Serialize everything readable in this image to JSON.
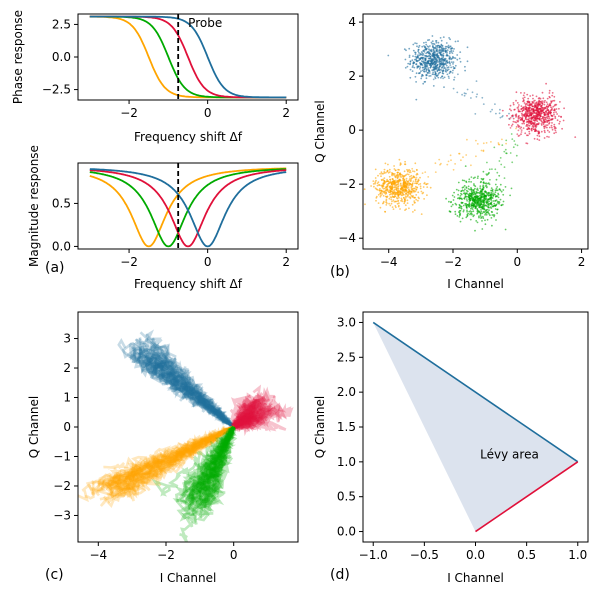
{
  "chart_data": [
    {
      "id": "a_phase",
      "type": "line",
      "ylabel": "Phase response",
      "xlabel": "Frequency shift Δf",
      "xlim": [
        -3.3,
        2.3
      ],
      "ylim": [
        -3.3,
        3.3
      ],
      "xticks": [
        -2,
        0,
        2
      ],
      "yticks": [
        -2.5,
        0.0,
        2.5
      ],
      "ytick_labels": [
        "−2.5",
        "0.0",
        "2.5"
      ],
      "xtick_labels": [
        "−2",
        "0",
        "2"
      ],
      "probe_x": -0.75,
      "annotation": "Probe",
      "series": [
        {
          "name": "orange",
          "color": "#FFA500",
          "center": -1.5
        },
        {
          "name": "green",
          "color": "#00AA00",
          "center": -1.0
        },
        {
          "name": "red",
          "color": "#E0103A",
          "center": -0.5
        },
        {
          "name": "blue",
          "color": "#1F6E9C",
          "center": 0.0
        }
      ],
      "x_range": [
        -3,
        2
      ],
      "amplitude": 3.1
    },
    {
      "id": "a_mag",
      "type": "line",
      "ylabel": "Magnitude response",
      "xlabel": "Frequency shift Δf",
      "panel_label": "(a)",
      "xlim": [
        -3.3,
        2.3
      ],
      "ylim": [
        -0.03,
        0.97
      ],
      "xticks": [
        -2,
        0,
        2
      ],
      "xtick_labels": [
        "−2",
        "0",
        "2"
      ],
      "yticks": [
        0.0,
        0.5
      ],
      "ytick_labels": [
        "0.0",
        "0.5"
      ],
      "probe_x": -0.75,
      "x_range": [
        -3,
        2
      ],
      "width": 0.55,
      "max": 0.93,
      "series": [
        {
          "name": "orange",
          "color": "#FFA500",
          "center": -1.5
        },
        {
          "name": "green",
          "color": "#00AA00",
          "center": -1.0
        },
        {
          "name": "red",
          "color": "#E0103A",
          "center": -0.5
        },
        {
          "name": "blue",
          "color": "#1F6E9C",
          "center": 0.0
        }
      ]
    },
    {
      "id": "b",
      "type": "scatter",
      "panel_label": "(b)",
      "xlabel": "I Channel",
      "ylabel": "Q Channel",
      "xlim": [
        -4.8,
        2.2
      ],
      "ylim": [
        -4.4,
        4.3
      ],
      "xticks": [
        -4,
        -2,
        0,
        2
      ],
      "xtick_labels": [
        "−4",
        "−2",
        "0",
        "2"
      ],
      "yticks": [
        -4,
        -2,
        0,
        2,
        4
      ],
      "ytick_labels": [
        "−4",
        "−2",
        "0",
        "2",
        "4"
      ],
      "clusters": [
        {
          "name": "blue",
          "color": "#1F6E9C",
          "center": [
            -2.6,
            2.6
          ],
          "spread": 0.35,
          "count": 600
        },
        {
          "name": "red",
          "color": "#E0103A",
          "center": [
            0.6,
            0.6
          ],
          "spread": 0.35,
          "count": 600
        },
        {
          "name": "orange",
          "color": "#FFA500",
          "center": [
            -3.7,
            -2.1
          ],
          "spread": 0.35,
          "count": 600
        },
        {
          "name": "green",
          "color": "#00AA00",
          "center": [
            -1.2,
            -2.6
          ],
          "spread": 0.35,
          "count": 600
        }
      ]
    },
    {
      "id": "c",
      "type": "line",
      "panel_label": "(c)",
      "xlabel": "I Channel",
      "ylabel": "Q Channel",
      "xlim": [
        -4.6,
        1.9
      ],
      "ylim": [
        -3.9,
        3.9
      ],
      "xticks": [
        -4,
        -2,
        0
      ],
      "xtick_labels": [
        "−4",
        "−2",
        "0"
      ],
      "yticks": [
        -3,
        -2,
        -1,
        0,
        1,
        2,
        3
      ],
      "ytick_labels": [
        "−3",
        "−2",
        "−1",
        "0",
        "1",
        "2",
        "3"
      ],
      "series": [
        {
          "name": "blue",
          "color": "#1F6E9C",
          "end": [
            -2.6,
            2.6
          ],
          "trajectories": 30
        },
        {
          "name": "red",
          "color": "#E0103A",
          "end": [
            0.8,
            0.6
          ],
          "trajectories": 30
        },
        {
          "name": "orange",
          "color": "#FFA500",
          "end": [
            -3.7,
            -2.1
          ],
          "trajectories": 30
        },
        {
          "name": "green",
          "color": "#00AA00",
          "end": [
            -1.2,
            -2.6
          ],
          "trajectories": 30
        }
      ]
    },
    {
      "id": "d",
      "type": "area",
      "panel_label": "(d)",
      "xlabel": "I Channel",
      "ylabel": "Q Channel",
      "xlim": [
        -1.1,
        1.1
      ],
      "ylim": [
        -0.15,
        3.15
      ],
      "xticks": [
        -1.0,
        -0.5,
        0.0,
        0.5,
        1.0
      ],
      "xtick_labels": [
        "−1.0",
        "−0.5",
        "0.0",
        "0.5",
        "1.0"
      ],
      "yticks": [
        0.0,
        0.5,
        1.0,
        1.5,
        2.0,
        2.5,
        3.0
      ],
      "ytick_labels": [
        "0.0",
        "0.5",
        "1.0",
        "1.5",
        "2.0",
        "2.5",
        "3.0"
      ],
      "triangle": [
        [
          -1.0,
          3.0
        ],
        [
          1.0,
          1.0
        ],
        [
          0.0,
          0.0
        ]
      ],
      "blue_line": [
        [
          -1.0,
          3.0
        ],
        [
          1.0,
          1.0
        ]
      ],
      "red_line": [
        [
          0.0,
          0.0
        ],
        [
          1.0,
          1.0
        ]
      ],
      "annotation": "Lévy area",
      "annotation_at": [
        0.0,
        1.05
      ],
      "fill_color": "#DCE3EE",
      "blue_color": "#1F6E9C",
      "red_color": "#E0103A"
    }
  ]
}
